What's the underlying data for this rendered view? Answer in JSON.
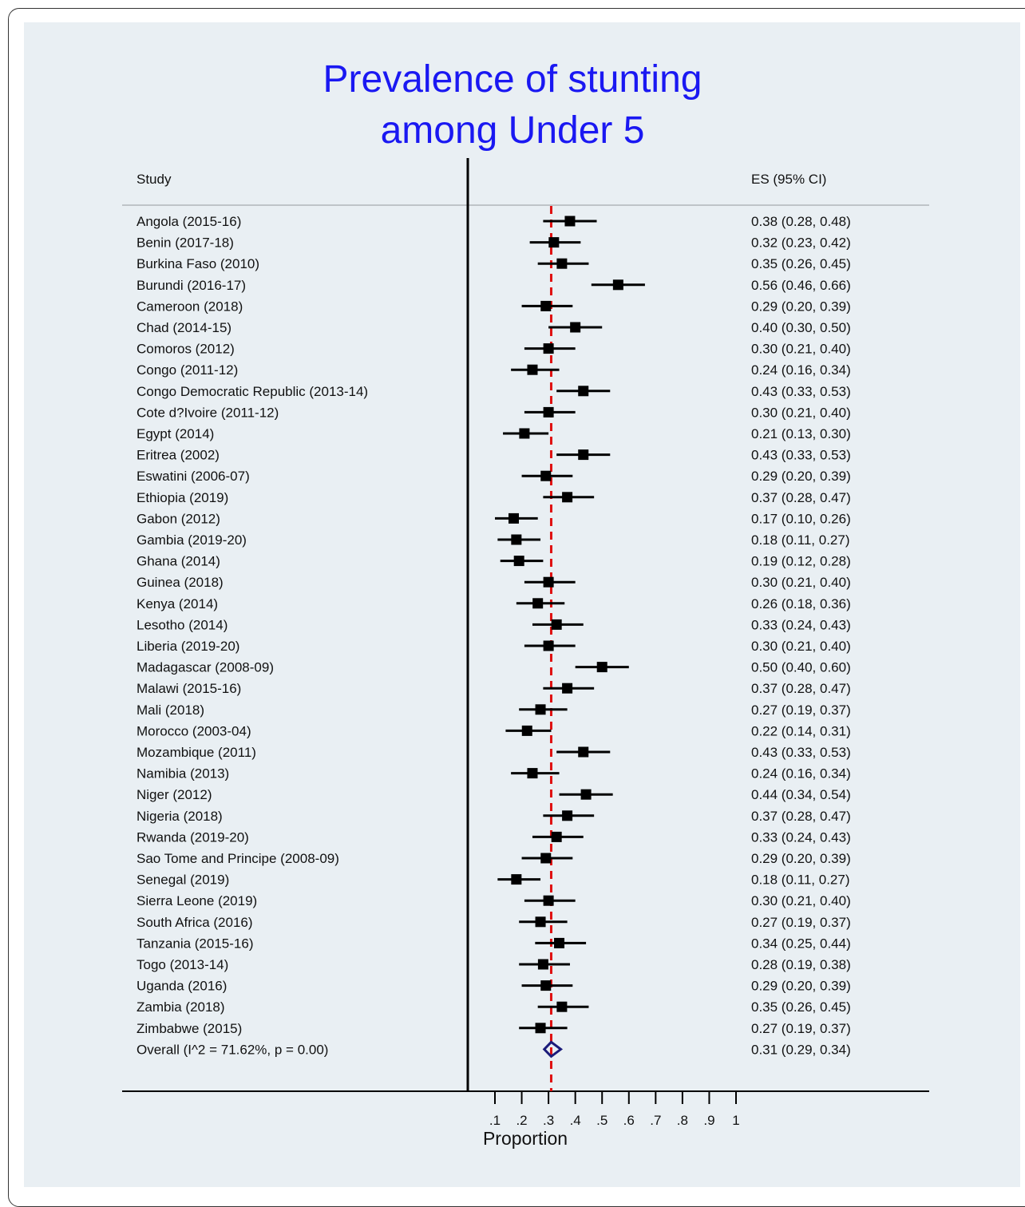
{
  "title_lines": [
    "Prevalence of stunting",
    "among Under 5"
  ],
  "chart_data": {
    "type": "forest",
    "column_headers": {
      "study": "Study",
      "estimate": "ES (95% CI)"
    },
    "xlabel": "Proportion",
    "xlim": [
      0.1,
      1.0
    ],
    "xticks": [
      ".1",
      ".2",
      ".3",
      ".4",
      ".5",
      ".6",
      ".7",
      ".8",
      ".9",
      "1"
    ],
    "reference_line": 0.31,
    "studies": [
      {
        "label": "Angola (2015-16)",
        "es": 0.38,
        "lo": 0.28,
        "hi": 0.48,
        "text": "0.38 (0.28, 0.48)"
      },
      {
        "label": "Benin (2017-18)",
        "es": 0.32,
        "lo": 0.23,
        "hi": 0.42,
        "text": "0.32 (0.23, 0.42)"
      },
      {
        "label": "Burkina Faso (2010)",
        "es": 0.35,
        "lo": 0.26,
        "hi": 0.45,
        "text": "0.35 (0.26, 0.45)"
      },
      {
        "label": "Burundi (2016-17)",
        "es": 0.56,
        "lo": 0.46,
        "hi": 0.66,
        "text": "0.56 (0.46, 0.66)"
      },
      {
        "label": "Cameroon (2018)",
        "es": 0.29,
        "lo": 0.2,
        "hi": 0.39,
        "text": "0.29 (0.20, 0.39)"
      },
      {
        "label": "Chad (2014-15)",
        "es": 0.4,
        "lo": 0.3,
        "hi": 0.5,
        "text": "0.40 (0.30, 0.50)"
      },
      {
        "label": "Comoros (2012)",
        "es": 0.3,
        "lo": 0.21,
        "hi": 0.4,
        "text": "0.30 (0.21, 0.40)"
      },
      {
        "label": "Congo (2011-12)",
        "es": 0.24,
        "lo": 0.16,
        "hi": 0.34,
        "text": "0.24 (0.16, 0.34)"
      },
      {
        "label": "Congo Democratic Republic (2013-14)",
        "es": 0.43,
        "lo": 0.33,
        "hi": 0.53,
        "text": "0.43 (0.33, 0.53)"
      },
      {
        "label": "Cote d?Ivoire (2011-12)",
        "es": 0.3,
        "lo": 0.21,
        "hi": 0.4,
        "text": "0.30 (0.21, 0.40)"
      },
      {
        "label": "Egypt (2014)",
        "es": 0.21,
        "lo": 0.13,
        "hi": 0.3,
        "text": "0.21 (0.13, 0.30)"
      },
      {
        "label": "Eritrea (2002)",
        "es": 0.43,
        "lo": 0.33,
        "hi": 0.53,
        "text": "0.43 (0.33, 0.53)"
      },
      {
        "label": "Eswatini (2006-07)",
        "es": 0.29,
        "lo": 0.2,
        "hi": 0.39,
        "text": "0.29 (0.20, 0.39)"
      },
      {
        "label": "Ethiopia (2019)",
        "es": 0.37,
        "lo": 0.28,
        "hi": 0.47,
        "text": "0.37 (0.28, 0.47)"
      },
      {
        "label": "Gabon (2012)",
        "es": 0.17,
        "lo": 0.1,
        "hi": 0.26,
        "text": "0.17 (0.10, 0.26)"
      },
      {
        "label": "Gambia (2019-20)",
        "es": 0.18,
        "lo": 0.11,
        "hi": 0.27,
        "text": "0.18 (0.11, 0.27)"
      },
      {
        "label": "Ghana (2014)",
        "es": 0.19,
        "lo": 0.12,
        "hi": 0.28,
        "text": "0.19 (0.12, 0.28)"
      },
      {
        "label": "Guinea (2018)",
        "es": 0.3,
        "lo": 0.21,
        "hi": 0.4,
        "text": "0.30 (0.21, 0.40)"
      },
      {
        "label": "Kenya  (2014)",
        "es": 0.26,
        "lo": 0.18,
        "hi": 0.36,
        "text": "0.26 (0.18, 0.36)"
      },
      {
        "label": "Lesotho (2014)",
        "es": 0.33,
        "lo": 0.24,
        "hi": 0.43,
        "text": "0.33 (0.24, 0.43)"
      },
      {
        "label": "Liberia (2019-20)",
        "es": 0.3,
        "lo": 0.21,
        "hi": 0.4,
        "text": "0.30 (0.21, 0.40)"
      },
      {
        "label": "Madagascar (2008-09)",
        "es": 0.5,
        "lo": 0.4,
        "hi": 0.6,
        "text": "0.50 (0.40, 0.60)"
      },
      {
        "label": "Malawi (2015-16)",
        "es": 0.37,
        "lo": 0.28,
        "hi": 0.47,
        "text": "0.37 (0.28, 0.47)"
      },
      {
        "label": "Mali (2018)",
        "es": 0.27,
        "lo": 0.19,
        "hi": 0.37,
        "text": "0.27 (0.19, 0.37)"
      },
      {
        "label": "Morocco (2003-04)",
        "es": 0.22,
        "lo": 0.14,
        "hi": 0.31,
        "text": "0.22 (0.14, 0.31)"
      },
      {
        "label": "Mozambique (2011)",
        "es": 0.43,
        "lo": 0.33,
        "hi": 0.53,
        "text": "0.43 (0.33, 0.53)"
      },
      {
        "label": "Namibia (2013)",
        "es": 0.24,
        "lo": 0.16,
        "hi": 0.34,
        "text": "0.24 (0.16, 0.34)"
      },
      {
        "label": "Niger (2012)",
        "es": 0.44,
        "lo": 0.34,
        "hi": 0.54,
        "text": "0.44 (0.34, 0.54)"
      },
      {
        "label": "Nigeria (2018)",
        "es": 0.37,
        "lo": 0.28,
        "hi": 0.47,
        "text": "0.37 (0.28, 0.47)"
      },
      {
        "label": "Rwanda (2019-20)",
        "es": 0.33,
        "lo": 0.24,
        "hi": 0.43,
        "text": "0.33 (0.24, 0.43)"
      },
      {
        "label": "Sao Tome and Principe (2008-09)",
        "es": 0.29,
        "lo": 0.2,
        "hi": 0.39,
        "text": "0.29 (0.20, 0.39)"
      },
      {
        "label": "Senegal (2019)",
        "es": 0.18,
        "lo": 0.11,
        "hi": 0.27,
        "text": "0.18 (0.11, 0.27)"
      },
      {
        "label": "Sierra Leone (2019)",
        "es": 0.3,
        "lo": 0.21,
        "hi": 0.4,
        "text": "0.30 (0.21, 0.40)"
      },
      {
        "label": "South Africa (2016)",
        "es": 0.27,
        "lo": 0.19,
        "hi": 0.37,
        "text": "0.27 (0.19, 0.37)"
      },
      {
        "label": "Tanzania (2015-16)",
        "es": 0.34,
        "lo": 0.25,
        "hi": 0.44,
        "text": "0.34 (0.25, 0.44)"
      },
      {
        "label": "Togo (2013-14)",
        "es": 0.28,
        "lo": 0.19,
        "hi": 0.38,
        "text": "0.28 (0.19, 0.38)"
      },
      {
        "label": "Uganda (2016)",
        "es": 0.29,
        "lo": 0.2,
        "hi": 0.39,
        "text": "0.29 (0.20, 0.39)"
      },
      {
        "label": "Zambia (2018)",
        "es": 0.35,
        "lo": 0.26,
        "hi": 0.45,
        "text": "0.35 (0.26, 0.45)"
      },
      {
        "label": "Zimbabwe (2015)",
        "es": 0.27,
        "lo": 0.19,
        "hi": 0.37,
        "text": "0.27 (0.19, 0.37)"
      }
    ],
    "overall": {
      "label": "Overall  (I^2 = 71.62%, p = 0.00)",
      "es": 0.31,
      "lo": 0.29,
      "hi": 0.34,
      "text": "0.31 (0.29, 0.34)"
    },
    "colors": {
      "title": "#1a18f2",
      "reference_line": "#e01010",
      "diamond": "#1b1b7a",
      "marker": "#000000",
      "background": "#e9eff3"
    }
  }
}
